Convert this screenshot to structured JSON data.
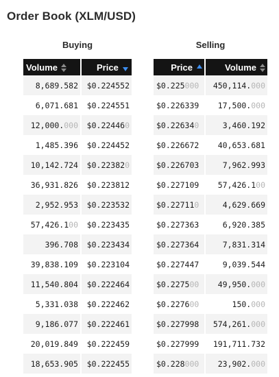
{
  "title": "Order Book (XLM/USD)",
  "colors": {
    "header_bg": "#141414",
    "sort_active": "#3d8ef0",
    "row_stripe": "#f3f3f3",
    "pad_digits": "#b5b5b5"
  },
  "buying": {
    "label": "Buying",
    "columns": [
      {
        "label": "Volume",
        "sort": "none",
        "icon": "sort-both-icon"
      },
      {
        "label": "Price",
        "sort": "desc",
        "icon": "sort-down-icon"
      }
    ],
    "rows": [
      {
        "volume": "8,689.582",
        "price": "$0.224552"
      },
      {
        "volume": "6,071.681",
        "price": "$0.224551"
      },
      {
        "volume": "12,000.000",
        "price": "$0.224460"
      },
      {
        "volume": "1,485.396",
        "price": "$0.224452"
      },
      {
        "volume": "10,142.724",
        "price": "$0.223820"
      },
      {
        "volume": "36,931.826",
        "price": "$0.223812"
      },
      {
        "volume": "2,952.953",
        "price": "$0.223532"
      },
      {
        "volume": "57,426.100",
        "price": "$0.223435"
      },
      {
        "volume": "396.708",
        "price": "$0.223434"
      },
      {
        "volume": "39,838.109",
        "price": "$0.223104"
      },
      {
        "volume": "11,540.804",
        "price": "$0.222464"
      },
      {
        "volume": "5,331.038",
        "price": "$0.222462"
      },
      {
        "volume": "9,186.077",
        "price": "$0.222461"
      },
      {
        "volume": "20,019.849",
        "price": "$0.222459"
      },
      {
        "volume": "18,653.905",
        "price": "$0.222455"
      }
    ]
  },
  "selling": {
    "label": "Selling",
    "columns": [
      {
        "label": "Price",
        "sort": "asc",
        "icon": "sort-up-icon"
      },
      {
        "label": "Volume",
        "sort": "none",
        "icon": "sort-both-icon"
      }
    ],
    "rows": [
      {
        "price": "$0.225000",
        "volume": "450,114.000"
      },
      {
        "price": "$0.226339",
        "volume": "17,500.000"
      },
      {
        "price": "$0.226340",
        "volume": "3,460.192"
      },
      {
        "price": "$0.226672",
        "volume": "40,653.681"
      },
      {
        "price": "$0.226703",
        "volume": "7,962.993"
      },
      {
        "price": "$0.227109",
        "volume": "57,426.100"
      },
      {
        "price": "$0.227110",
        "volume": "4,629.669"
      },
      {
        "price": "$0.227363",
        "volume": "6,920.385"
      },
      {
        "price": "$0.227364",
        "volume": "7,831.314"
      },
      {
        "price": "$0.227447",
        "volume": "9,039.544"
      },
      {
        "price": "$0.227500",
        "volume": "49,950.000"
      },
      {
        "price": "$0.227600",
        "volume": "150.000"
      },
      {
        "price": "$0.227998",
        "volume": "574,261.000"
      },
      {
        "price": "$0.227999",
        "volume": "191,711.732"
      },
      {
        "price": "$0.228000",
        "volume": "23,902.000"
      }
    ]
  }
}
